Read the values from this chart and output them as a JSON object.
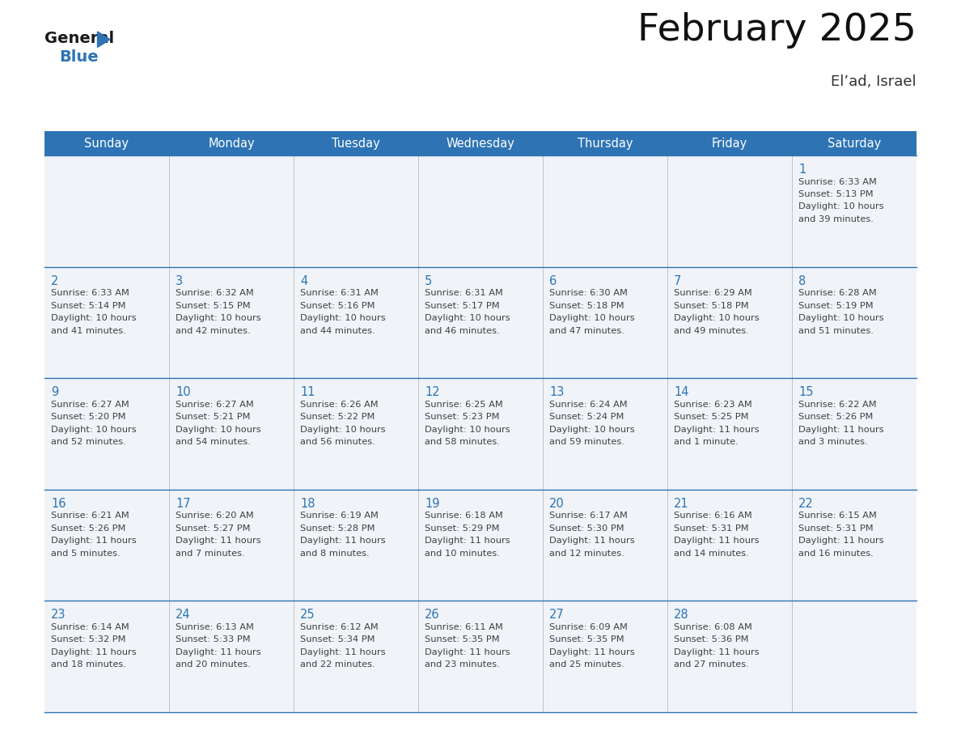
{
  "title": "February 2025",
  "subtitle": "El’ad, Israel",
  "header_bg": "#2E74B5",
  "header_text_color": "#FFFFFF",
  "day_names": [
    "Sunday",
    "Monday",
    "Tuesday",
    "Wednesday",
    "Thursday",
    "Friday",
    "Saturday"
  ],
  "bg_color": "#FFFFFF",
  "cell_bg": "#F0F4F8",
  "grid_line_color": "#2E74B5",
  "day_num_color": "#2E74B5",
  "text_color": "#404040",
  "weeks": [
    [
      {
        "day": null,
        "sunrise": null,
        "sunset": null,
        "daylight": null
      },
      {
        "day": null,
        "sunrise": null,
        "sunset": null,
        "daylight": null
      },
      {
        "day": null,
        "sunrise": null,
        "sunset": null,
        "daylight": null
      },
      {
        "day": null,
        "sunrise": null,
        "sunset": null,
        "daylight": null
      },
      {
        "day": null,
        "sunrise": null,
        "sunset": null,
        "daylight": null
      },
      {
        "day": null,
        "sunrise": null,
        "sunset": null,
        "daylight": null
      },
      {
        "day": 1,
        "sunrise": "6:33 AM",
        "sunset": "5:13 PM",
        "daylight": "10 hours\nand 39 minutes."
      }
    ],
    [
      {
        "day": 2,
        "sunrise": "6:33 AM",
        "sunset": "5:14 PM",
        "daylight": "10 hours\nand 41 minutes."
      },
      {
        "day": 3,
        "sunrise": "6:32 AM",
        "sunset": "5:15 PM",
        "daylight": "10 hours\nand 42 minutes."
      },
      {
        "day": 4,
        "sunrise": "6:31 AM",
        "sunset": "5:16 PM",
        "daylight": "10 hours\nand 44 minutes."
      },
      {
        "day": 5,
        "sunrise": "6:31 AM",
        "sunset": "5:17 PM",
        "daylight": "10 hours\nand 46 minutes."
      },
      {
        "day": 6,
        "sunrise": "6:30 AM",
        "sunset": "5:18 PM",
        "daylight": "10 hours\nand 47 minutes."
      },
      {
        "day": 7,
        "sunrise": "6:29 AM",
        "sunset": "5:18 PM",
        "daylight": "10 hours\nand 49 minutes."
      },
      {
        "day": 8,
        "sunrise": "6:28 AM",
        "sunset": "5:19 PM",
        "daylight": "10 hours\nand 51 minutes."
      }
    ],
    [
      {
        "day": 9,
        "sunrise": "6:27 AM",
        "sunset": "5:20 PM",
        "daylight": "10 hours\nand 52 minutes."
      },
      {
        "day": 10,
        "sunrise": "6:27 AM",
        "sunset": "5:21 PM",
        "daylight": "10 hours\nand 54 minutes."
      },
      {
        "day": 11,
        "sunrise": "6:26 AM",
        "sunset": "5:22 PM",
        "daylight": "10 hours\nand 56 minutes."
      },
      {
        "day": 12,
        "sunrise": "6:25 AM",
        "sunset": "5:23 PM",
        "daylight": "10 hours\nand 58 minutes."
      },
      {
        "day": 13,
        "sunrise": "6:24 AM",
        "sunset": "5:24 PM",
        "daylight": "10 hours\nand 59 minutes."
      },
      {
        "day": 14,
        "sunrise": "6:23 AM",
        "sunset": "5:25 PM",
        "daylight": "11 hours\nand 1 minute."
      },
      {
        "day": 15,
        "sunrise": "6:22 AM",
        "sunset": "5:26 PM",
        "daylight": "11 hours\nand 3 minutes."
      }
    ],
    [
      {
        "day": 16,
        "sunrise": "6:21 AM",
        "sunset": "5:26 PM",
        "daylight": "11 hours\nand 5 minutes."
      },
      {
        "day": 17,
        "sunrise": "6:20 AM",
        "sunset": "5:27 PM",
        "daylight": "11 hours\nand 7 minutes."
      },
      {
        "day": 18,
        "sunrise": "6:19 AM",
        "sunset": "5:28 PM",
        "daylight": "11 hours\nand 8 minutes."
      },
      {
        "day": 19,
        "sunrise": "6:18 AM",
        "sunset": "5:29 PM",
        "daylight": "11 hours\nand 10 minutes."
      },
      {
        "day": 20,
        "sunrise": "6:17 AM",
        "sunset": "5:30 PM",
        "daylight": "11 hours\nand 12 minutes."
      },
      {
        "day": 21,
        "sunrise": "6:16 AM",
        "sunset": "5:31 PM",
        "daylight": "11 hours\nand 14 minutes."
      },
      {
        "day": 22,
        "sunrise": "6:15 AM",
        "sunset": "5:31 PM",
        "daylight": "11 hours\nand 16 minutes."
      }
    ],
    [
      {
        "day": 23,
        "sunrise": "6:14 AM",
        "sunset": "5:32 PM",
        "daylight": "11 hours\nand 18 minutes."
      },
      {
        "day": 24,
        "sunrise": "6:13 AM",
        "sunset": "5:33 PM",
        "daylight": "11 hours\nand 20 minutes."
      },
      {
        "day": 25,
        "sunrise": "6:12 AM",
        "sunset": "5:34 PM",
        "daylight": "11 hours\nand 22 minutes."
      },
      {
        "day": 26,
        "sunrise": "6:11 AM",
        "sunset": "5:35 PM",
        "daylight": "11 hours\nand 23 minutes."
      },
      {
        "day": 27,
        "sunrise": "6:09 AM",
        "sunset": "5:35 PM",
        "daylight": "11 hours\nand 25 minutes."
      },
      {
        "day": 28,
        "sunrise": "6:08 AM",
        "sunset": "5:36 PM",
        "daylight": "11 hours\nand 27 minutes."
      },
      {
        "day": null,
        "sunrise": null,
        "sunset": null,
        "daylight": null
      }
    ]
  ],
  "logo_general_color": "#1a1a1a",
  "logo_blue_color": "#2E74B5",
  "logo_triangle_color": "#2E74B5"
}
